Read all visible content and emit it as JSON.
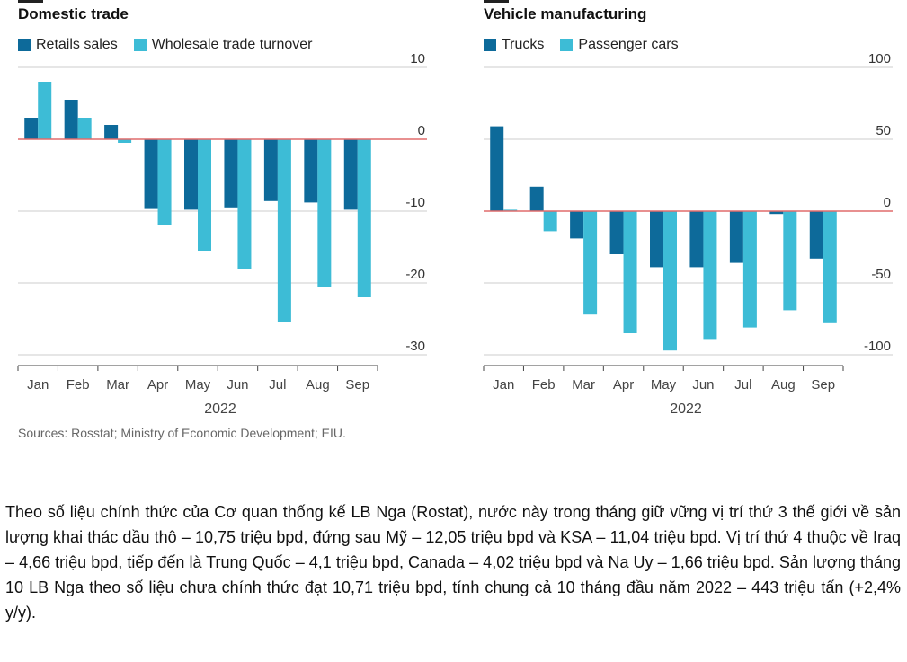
{
  "colors": {
    "series1": "#0d6a9a",
    "series2": "#3dbcd6",
    "zero_line": "#e06b6b",
    "grid": "#cccccc",
    "axis": "#444444"
  },
  "chart_data": [
    {
      "type": "bar",
      "title": "Domestic trade",
      "categories": [
        "Jan",
        "Feb",
        "Mar",
        "Apr",
        "May",
        "Jun",
        "Jul",
        "Aug",
        "Sep"
      ],
      "year_label": "2022",
      "series": [
        {
          "name": "Retails sales",
          "values": [
            3,
            5.5,
            2,
            -9.7,
            -9.8,
            -9.6,
            -8.6,
            -8.8,
            -9.8
          ]
        },
        {
          "name": "Wholesale trade turnover",
          "values": [
            8,
            3,
            -0.5,
            -12,
            -15.5,
            -18,
            -25.5,
            -20.5,
            -22
          ]
        }
      ],
      "ylim": [
        -30,
        10
      ],
      "yticks": [
        10,
        0,
        -10,
        -20,
        -30
      ],
      "grid": true,
      "legend": "top-left"
    },
    {
      "type": "bar",
      "title": "Vehicle manufacturing",
      "categories": [
        "Jan",
        "Feb",
        "Mar",
        "Apr",
        "May",
        "Jun",
        "Jul",
        "Aug",
        "Sep"
      ],
      "year_label": "2022",
      "series": [
        {
          "name": "Trucks",
          "values": [
            59,
            17,
            -19,
            -30,
            -39,
            -39,
            -36,
            -2,
            -33
          ]
        },
        {
          "name": "Passenger cars",
          "values": [
            1,
            -14,
            -72,
            -85,
            -97,
            -89,
            -81,
            -69,
            -78
          ]
        }
      ],
      "ylim": [
        -100,
        100
      ],
      "yticks": [
        100,
        50,
        0,
        -50,
        -100
      ],
      "grid": true,
      "legend": "top-left"
    }
  ],
  "source": "Sources: Rosstat; Ministry of Economic Development; EIU.",
  "article": "Theo số liệu chính thức của Cơ quan thống kế LB Nga (Rostat), nước này trong tháng giữ vững vị trí thứ 3 thế giới về sản lượng khai thác dầu thô – 10,75 triệu bpd, đứng sau Mỹ – 12,05 triệu bpd và KSA – 11,04 triệu bpd. Vị trí thứ 4 thuộc về Iraq – 4,66 triệu bpd, tiếp đến là Trung Quốc – 4,1 triệu bpd, Canada – 4,02 triệu bpd và Na Uy – 1,66 triệu bpd. Sản lượng tháng 10 LB Nga theo số liệu chưa chính thức đạt 10,71 triệu bpd, tính chung cả 10 tháng đầu năm 2022 – 443 triệu tấn (+2,4% y/y)."
}
